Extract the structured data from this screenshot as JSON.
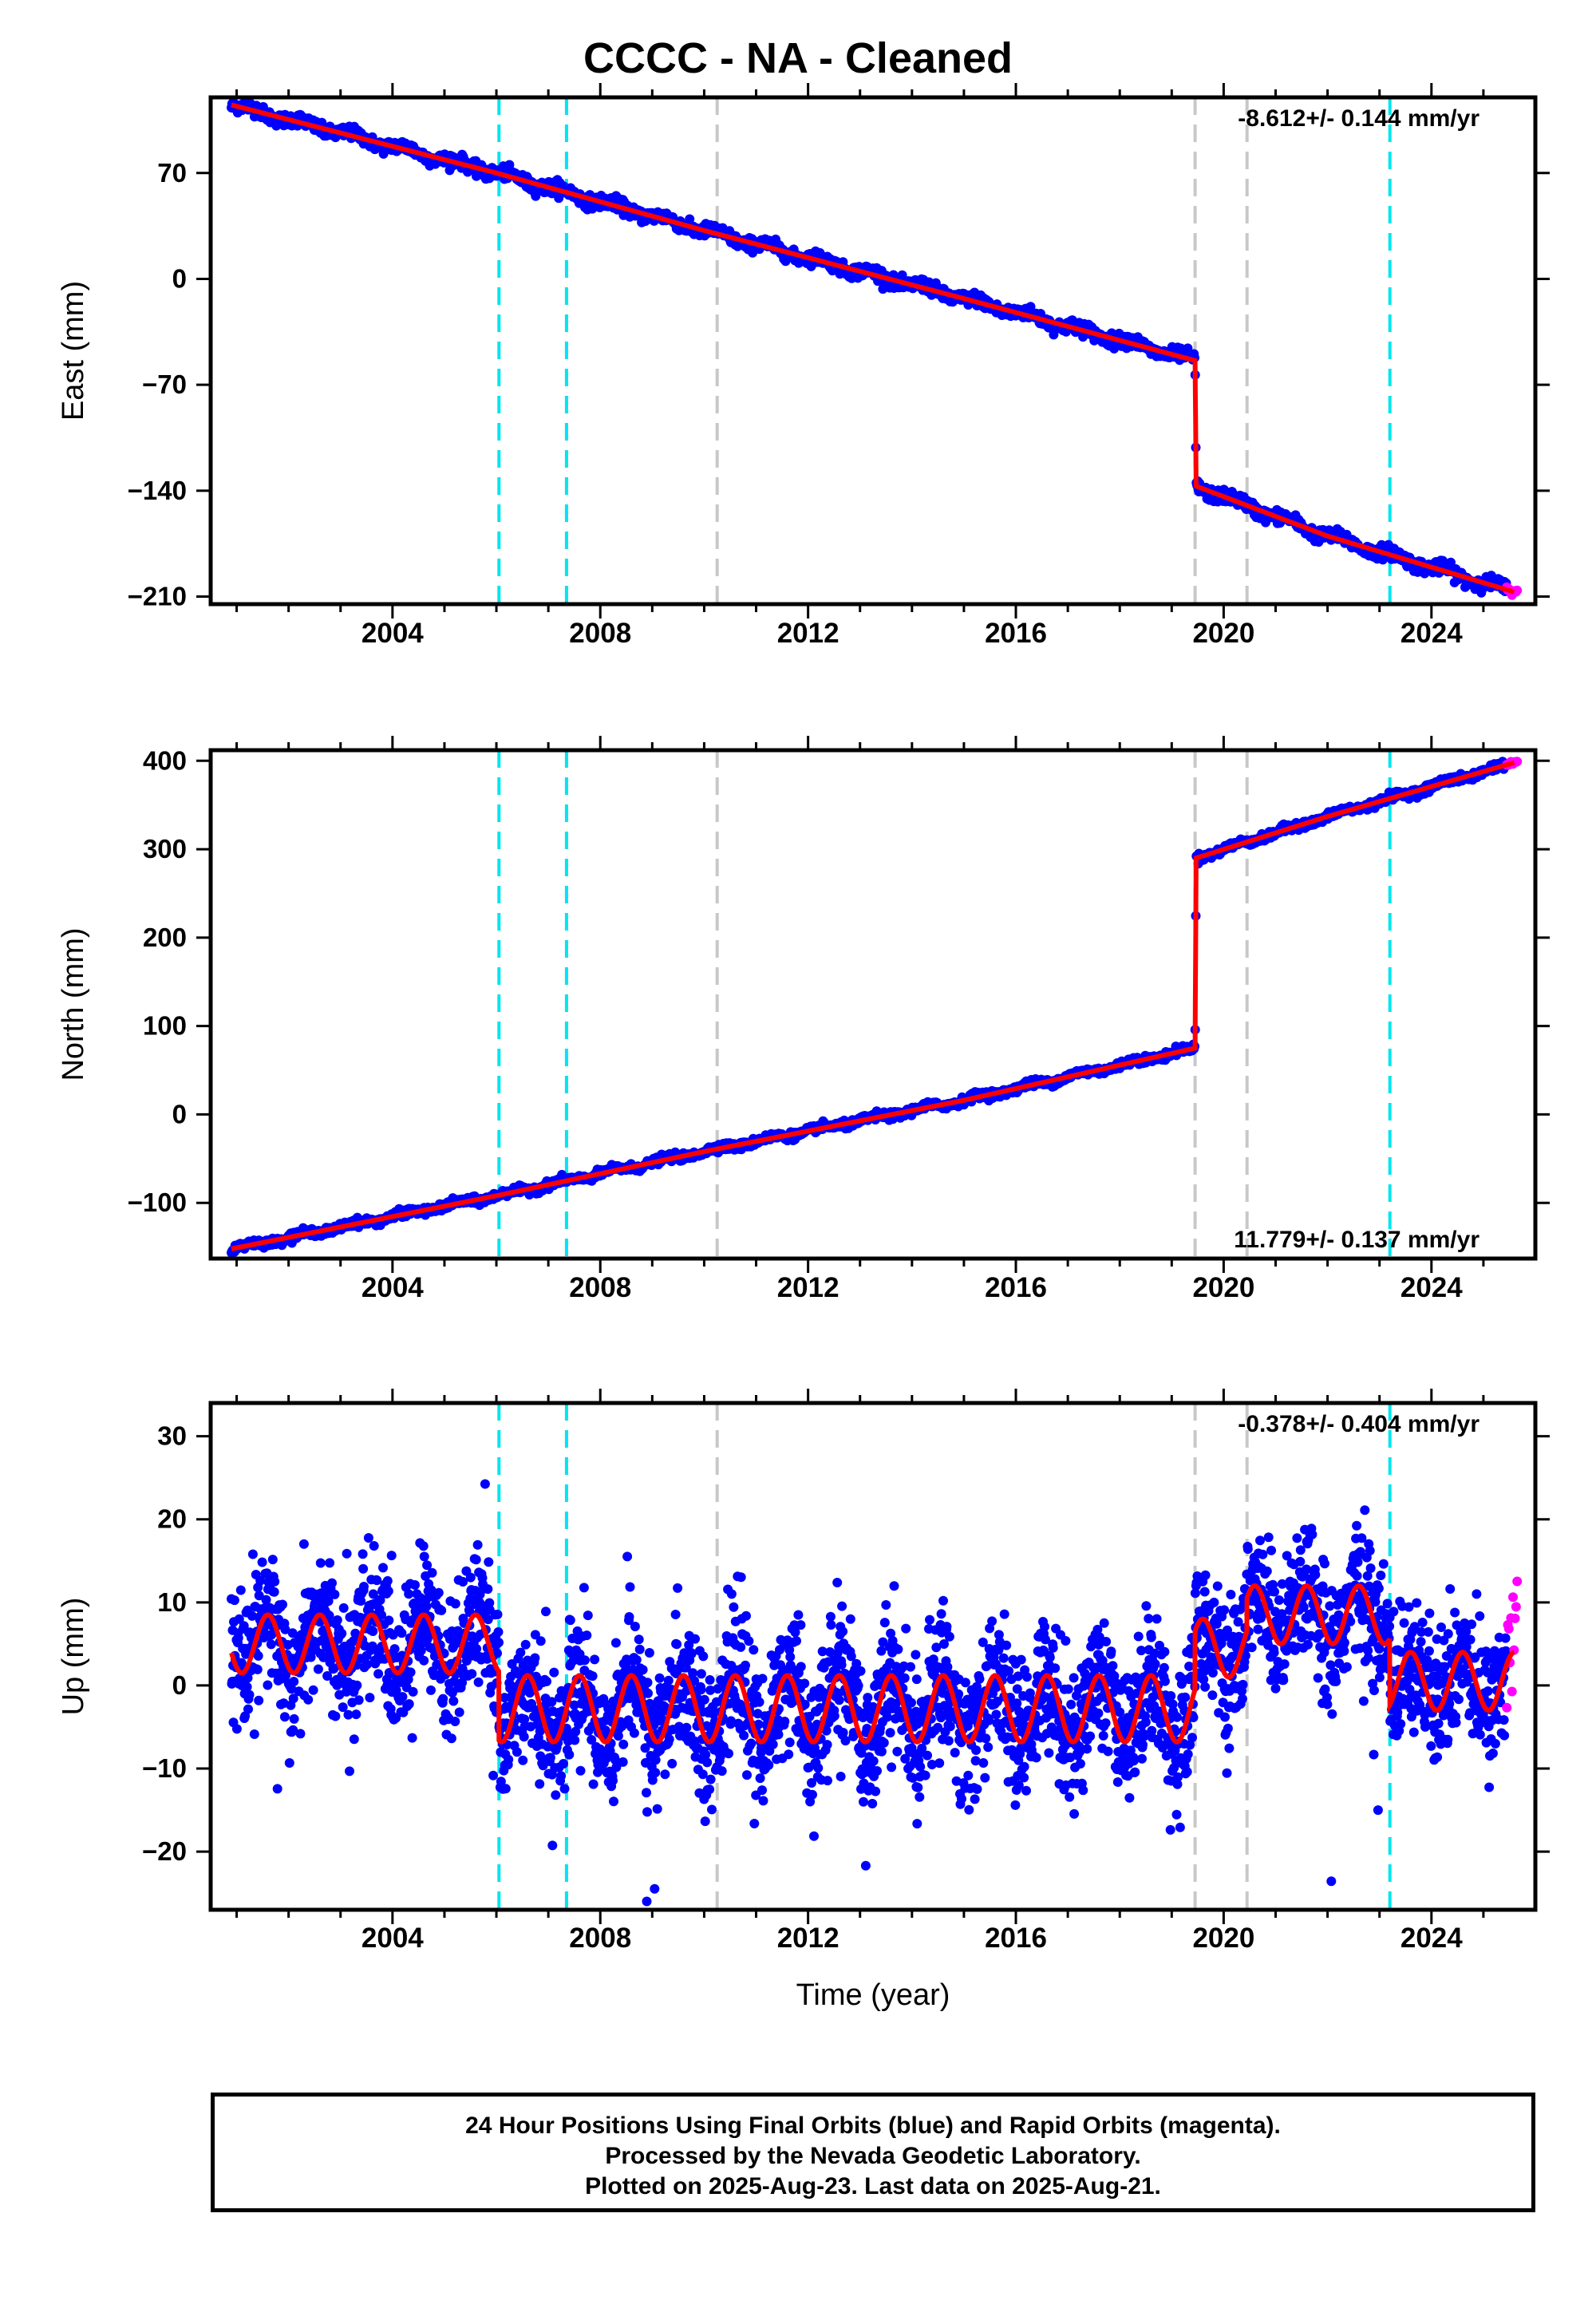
{
  "title": "CCCC  - NA - Cleaned",
  "footer": {
    "line1": "24 Hour Positions Using Final Orbits (blue) and Rapid Orbits (magenta).",
    "line2": "Processed by the Nevada Geodetic Laboratory.",
    "line3": "Plotted on 2025-Aug-23. Last data on 2025-Aug-21."
  },
  "colors": {
    "final_orbits": "#0000ff",
    "rapid_orbits": "#ff00ff",
    "model": "#ff0000",
    "event_cyan": "#00e5ee",
    "event_gray": "#c8c8c8"
  },
  "chart_data": [
    {
      "type": "scatter",
      "panel": "east",
      "ylabel": "East (mm)",
      "xlabel": "",
      "xlim": [
        2000.5,
        2026.0
      ],
      "ylim": [
        -215,
        120
      ],
      "yticks": [
        70,
        0,
        -70,
        -140,
        -210
      ],
      "xticks": [
        2004,
        2008,
        2012,
        2016,
        2020,
        2024
      ],
      "rate_label": "-8.612+/- 0.144 mm/yr",
      "rate_position": "top-right",
      "series": [
        {
          "kind": "model",
          "color": "#ff0000",
          "points": [
            [
              2000.9,
              115
            ],
            [
              2006.0,
              70
            ],
            [
              2010.0,
              32
            ],
            [
              2015.0,
              -13
            ],
            [
              2019.45,
              -54
            ],
            [
              2019.47,
              -137
            ],
            [
              2022.0,
              -170
            ],
            [
              2025.6,
              -207
            ]
          ]
        },
        {
          "kind": "final_orbits",
          "color": "#0000ff",
          "x_range": [
            2000.9,
            2025.45
          ],
          "amplitude_mm": 3
        },
        {
          "kind": "rapid_orbits",
          "color": "#ff00ff",
          "x_range": [
            2025.45,
            2025.65
          ]
        }
      ],
      "events": [
        {
          "x": 2006.05,
          "color": "cyan"
        },
        {
          "x": 2007.35,
          "color": "cyan"
        },
        {
          "x": 2010.25,
          "color": "gray"
        },
        {
          "x": 2019.45,
          "color": "gray"
        },
        {
          "x": 2020.45,
          "color": "gray"
        },
        {
          "x": 2023.2,
          "color": "cyan"
        }
      ]
    },
    {
      "type": "scatter",
      "panel": "north",
      "ylabel": "North (mm)",
      "xlabel": "",
      "xlim": [
        2000.5,
        2026.0
      ],
      "ylim": [
        -163,
        412
      ],
      "yticks": [
        400,
        300,
        200,
        100,
        0,
        -100
      ],
      "xticks": [
        2004,
        2008,
        2012,
        2016,
        2020,
        2024
      ],
      "rate_label": "11.779+/- 0.137 mm/yr",
      "rate_position": "bottom-right",
      "series": [
        {
          "kind": "model",
          "color": "#ff0000",
          "points": [
            [
              2000.9,
              -152
            ],
            [
              2006.0,
              -92
            ],
            [
              2010.0,
              -42
            ],
            [
              2015.0,
              16
            ],
            [
              2019.45,
              75
            ],
            [
              2019.47,
              290
            ],
            [
              2022.0,
              337
            ],
            [
              2025.6,
              398
            ]
          ]
        },
        {
          "kind": "final_orbits",
          "color": "#0000ff",
          "x_range": [
            2000.9,
            2025.45
          ],
          "amplitude_mm": 3
        },
        {
          "kind": "rapid_orbits",
          "color": "#ff00ff",
          "x_range": [
            2025.45,
            2025.65
          ]
        }
      ],
      "events": [
        {
          "x": 2006.05,
          "color": "cyan"
        },
        {
          "x": 2007.35,
          "color": "cyan"
        },
        {
          "x": 2010.25,
          "color": "gray"
        },
        {
          "x": 2019.45,
          "color": "gray"
        },
        {
          "x": 2020.45,
          "color": "gray"
        },
        {
          "x": 2023.2,
          "color": "cyan"
        }
      ]
    },
    {
      "type": "scatter",
      "panel": "up",
      "ylabel": "Up (mm)",
      "xlabel": "Time (year)",
      "xlim": [
        2000.5,
        2026.0
      ],
      "ylim": [
        -27,
        34
      ],
      "yticks": [
        30,
        20,
        10,
        0,
        -10,
        -20
      ],
      "xticks": [
        2004,
        2008,
        2012,
        2016,
        2020,
        2024
      ],
      "rate_label": "-0.378+/- 0.404 mm/yr",
      "rate_position": "top-right",
      "series": [
        {
          "kind": "model_seasonal",
          "color": "#ff0000",
          "segments": [
            {
              "x_range": [
                2000.9,
                2006.05
              ],
              "offset": 5.0,
              "amplitude": 3.5
            },
            {
              "x_range": [
                2006.05,
                2019.45
              ],
              "offset": -2.8,
              "amplitude": 4.0
            },
            {
              "x_range": [
                2019.45,
                2020.45
              ],
              "offset": 4.5,
              "amplitude": 3.5
            },
            {
              "x_range": [
                2020.45,
                2023.2
              ],
              "offset": 8.5,
              "amplitude": 3.5
            },
            {
              "x_range": [
                2023.2,
                2025.6
              ],
              "offset": 0.5,
              "amplitude": 3.5
            }
          ]
        },
        {
          "kind": "final_orbits",
          "color": "#0000ff",
          "x_range": [
            2000.9,
            2025.45
          ],
          "scatter_sd_mm": 4
        },
        {
          "kind": "rapid_orbits",
          "color": "#ff00ff",
          "x_range": [
            2025.45,
            2025.65
          ]
        }
      ],
      "events": [
        {
          "x": 2006.05,
          "color": "cyan"
        },
        {
          "x": 2007.35,
          "color": "cyan"
        },
        {
          "x": 2010.25,
          "color": "gray"
        },
        {
          "x": 2019.45,
          "color": "gray"
        },
        {
          "x": 2020.45,
          "color": "gray"
        },
        {
          "x": 2023.2,
          "color": "cyan"
        }
      ]
    }
  ]
}
